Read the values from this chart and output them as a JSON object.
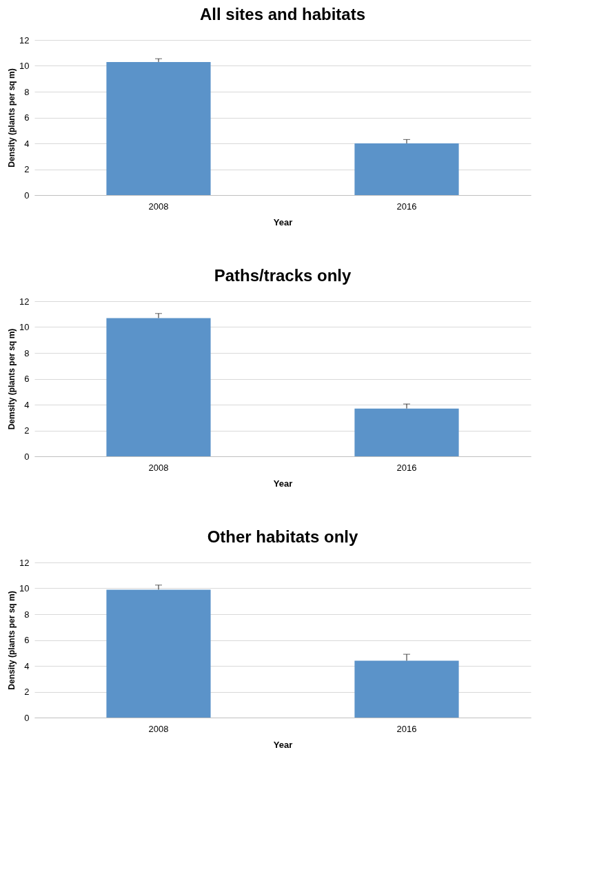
{
  "chart_data": [
    {
      "type": "bar",
      "title": "All sites and habitats",
      "xlabel": "Year",
      "ylabel": "Density (plants per sq m)",
      "categories": [
        "2008",
        "2016"
      ],
      "values": [
        10.3,
        4.0
      ],
      "color": "#5b93c9",
      "errors": [
        [
          10.3,
          10.55
        ],
        [
          4.0,
          4.3
        ]
      ],
      "ylim": [
        0,
        12
      ],
      "yticks": [
        0,
        2,
        4,
        6,
        8,
        10,
        12
      ],
      "grid": "y"
    },
    {
      "type": "bar",
      "title": "Paths/tracks only",
      "xlabel": "Year",
      "ylabel": "Demsity (plants per sq m)",
      "categories": [
        "2008",
        "2016"
      ],
      "values": [
        10.7,
        3.7
      ],
      "color": "#5b93c9",
      "errors": [
        [
          10.7,
          11.05
        ],
        [
          3.7,
          4.05
        ]
      ],
      "ylim": [
        0,
        12
      ],
      "yticks": [
        0,
        2,
        4,
        6,
        8,
        10,
        12
      ],
      "grid": "y"
    },
    {
      "type": "bar",
      "title": "Other habitats only",
      "xlabel": "Year",
      "ylabel": "Density (plants per sq m)",
      "categories": [
        "2008",
        "2016"
      ],
      "values": [
        9.9,
        4.4
      ],
      "color": "#5b93c9",
      "errors": [
        [
          9.9,
          10.25
        ],
        [
          4.4,
          4.9
        ]
      ],
      "ylim": [
        0,
        12
      ],
      "yticks": [
        0,
        2,
        4,
        6,
        8,
        10,
        12
      ],
      "grid": "y"
    }
  ]
}
